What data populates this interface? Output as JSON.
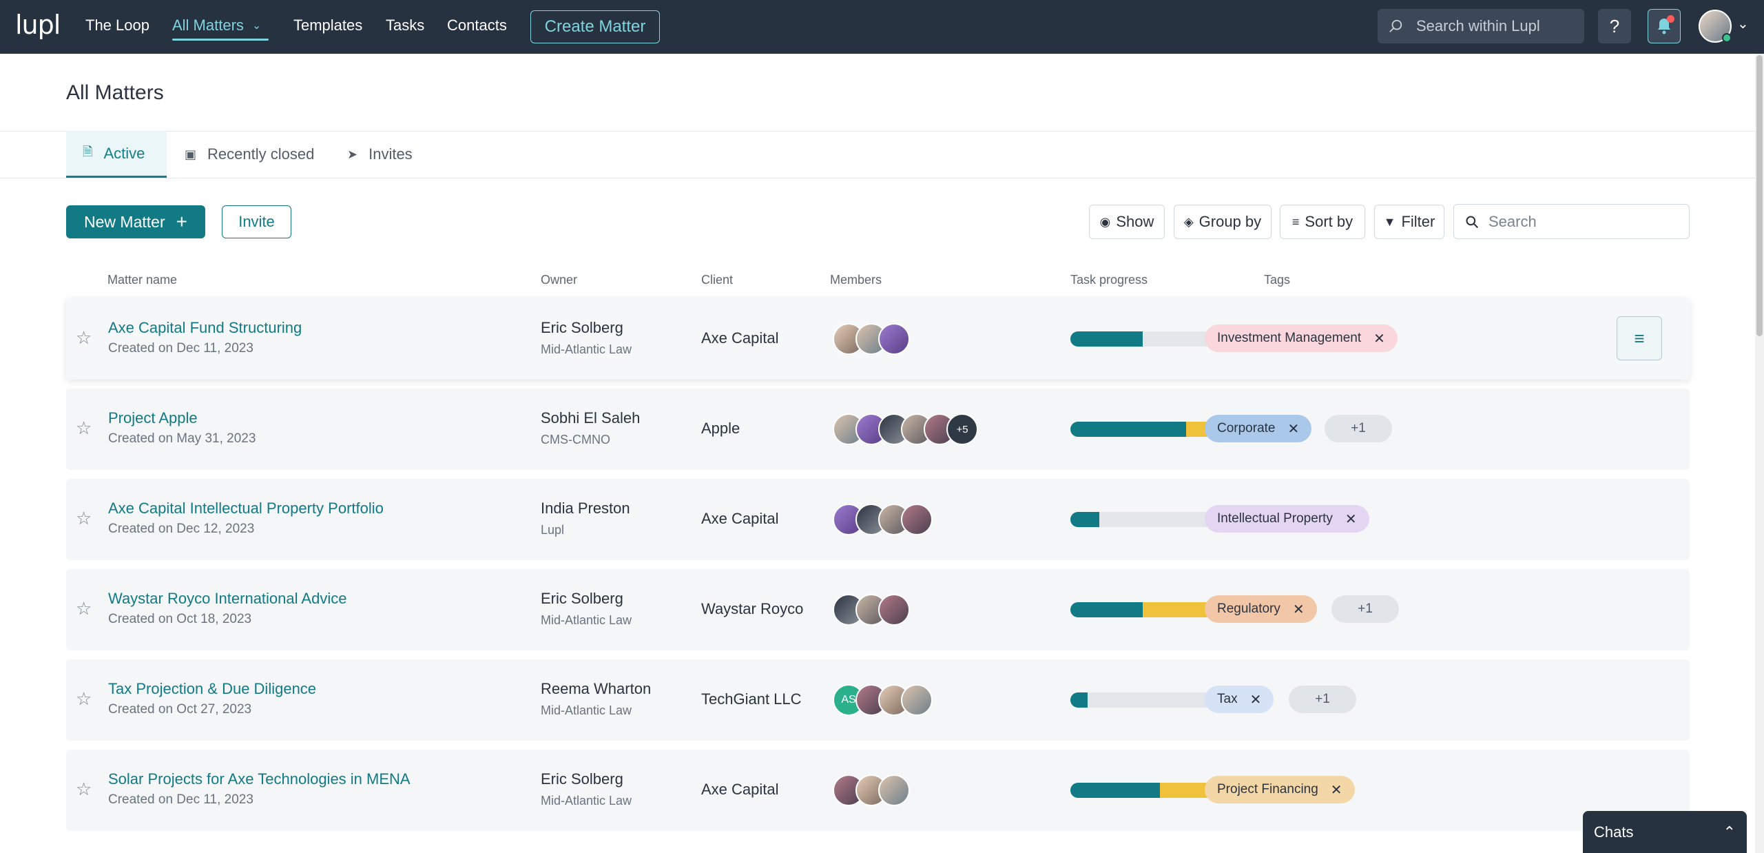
{
  "app": {
    "logo": "lupl",
    "nav": {
      "the_loop": "The Loop",
      "all_matters": "All Matters",
      "templates": "Templates",
      "tasks": "Tasks",
      "contacts": "Contacts",
      "create_matter": "Create Matter"
    },
    "search_placeholder": "Search within Lupl",
    "help_label": "?"
  },
  "page": {
    "title": "All Matters",
    "tabs": [
      "Active",
      "Recently closed",
      "Invites"
    ],
    "active_tab": "Active"
  },
  "toolbar": {
    "new_matter": "New Matter",
    "invite": "Invite",
    "show": "Show",
    "group_by": "Group by",
    "sort_by": "Sort by",
    "filter": "Filter",
    "search_placeholder": "Search"
  },
  "table": {
    "columns": [
      "Matter name",
      "Owner",
      "Client",
      "Members",
      "Task progress",
      "Tags"
    ],
    "rows": [
      {
        "name": "Axe Capital Fund Structuring",
        "created": "Created on Dec 11, 2023",
        "owner": "Eric Solberg",
        "owner_org": "Mid-Atlantic Law",
        "client": "Axe Capital",
        "members": [
          "photo",
          "photo",
          "photo"
        ],
        "done": 0.5,
        "in_progress": 0,
        "pct": "50%",
        "tags": [
          {
            "label": "Investment Management",
            "color": "#f9d7dc"
          }
        ],
        "more": ""
      },
      {
        "name": "Project Apple",
        "created": "Created on May 31, 2023",
        "owner": "Sobhi El Saleh",
        "owner_org": "CMS-CMNO",
        "client": "Apple",
        "members": [
          "photo",
          "photo",
          "photo",
          "photo",
          "photo",
          "+5"
        ],
        "done": 0.8,
        "in_progress": 0.2,
        "pct": "80%",
        "tags": [
          {
            "label": "Corporate",
            "color": "#a9c8ea"
          }
        ],
        "more": "+1"
      },
      {
        "name": "Axe Capital Intellectual Property Portfolio",
        "created": "Created on Dec 12, 2023",
        "owner": "India Preston",
        "owner_org": "Lupl",
        "client": "Axe Capital",
        "members": [
          "photo",
          "photo",
          "photo",
          "photo"
        ],
        "done": 0.2,
        "in_progress": 0,
        "pct": "20%",
        "tags": [
          {
            "label": "Intellectual Property",
            "color": "#e4d6f3"
          }
        ],
        "more": ""
      },
      {
        "name": "Waystar Royco International Advice",
        "created": "Created on Oct 18, 2023",
        "owner": "Eric Solberg",
        "owner_org": "Mid-Atlantic Law",
        "client": "Waystar Royco",
        "members": [
          "photo",
          "photo",
          "photo"
        ],
        "done": 0.5,
        "in_progress": 0.5,
        "pct": "50%",
        "tags": [
          {
            "label": "Regulatory",
            "color": "#f2c7a8"
          }
        ],
        "more": "+1"
      },
      {
        "name": "Tax Projection & Due Diligence",
        "created": "Created on Oct 27, 2023",
        "owner": "Reema Wharton",
        "owner_org": "Mid-Atlantic Law",
        "client": "TechGiant LLC",
        "members": [
          "AS",
          "photo",
          "photo",
          "photo"
        ],
        "done": 0.12,
        "in_progress": 0,
        "pct": "12%",
        "tags": [
          {
            "label": "Tax",
            "color": "#d6e3f6"
          }
        ],
        "more": "+1"
      },
      {
        "name": "Solar Projects for Axe Technologies in MENA",
        "created": "Created on Dec 11, 2023",
        "owner": "Eric Solberg",
        "owner_org": "Mid-Atlantic Law",
        "client": "Axe Capital",
        "members": [
          "photo",
          "photo",
          "photo"
        ],
        "done": 0.62,
        "in_progress": 0.38,
        "pct": "62%",
        "tags": [
          {
            "label": "Project Financing",
            "color": "#f4d7a6"
          }
        ],
        "more": ""
      }
    ]
  },
  "chats": {
    "label": "Chats"
  },
  "colors": {
    "accent": "#117a85",
    "nav_bg": "#273241",
    "nav_active": "#7fd3df",
    "progress_done": "#117a85",
    "progress_in_progress": "#f0c23b"
  },
  "icons": [
    "search-icon",
    "help-icon",
    "bell-icon",
    "chevron-down-icon",
    "plus-icon",
    "eye-icon",
    "layers-icon",
    "sort-icon",
    "filter-icon",
    "star-icon",
    "close-icon",
    "menu-icon",
    "chevron-up-icon",
    "document-icon",
    "archive-icon",
    "send-icon"
  ]
}
